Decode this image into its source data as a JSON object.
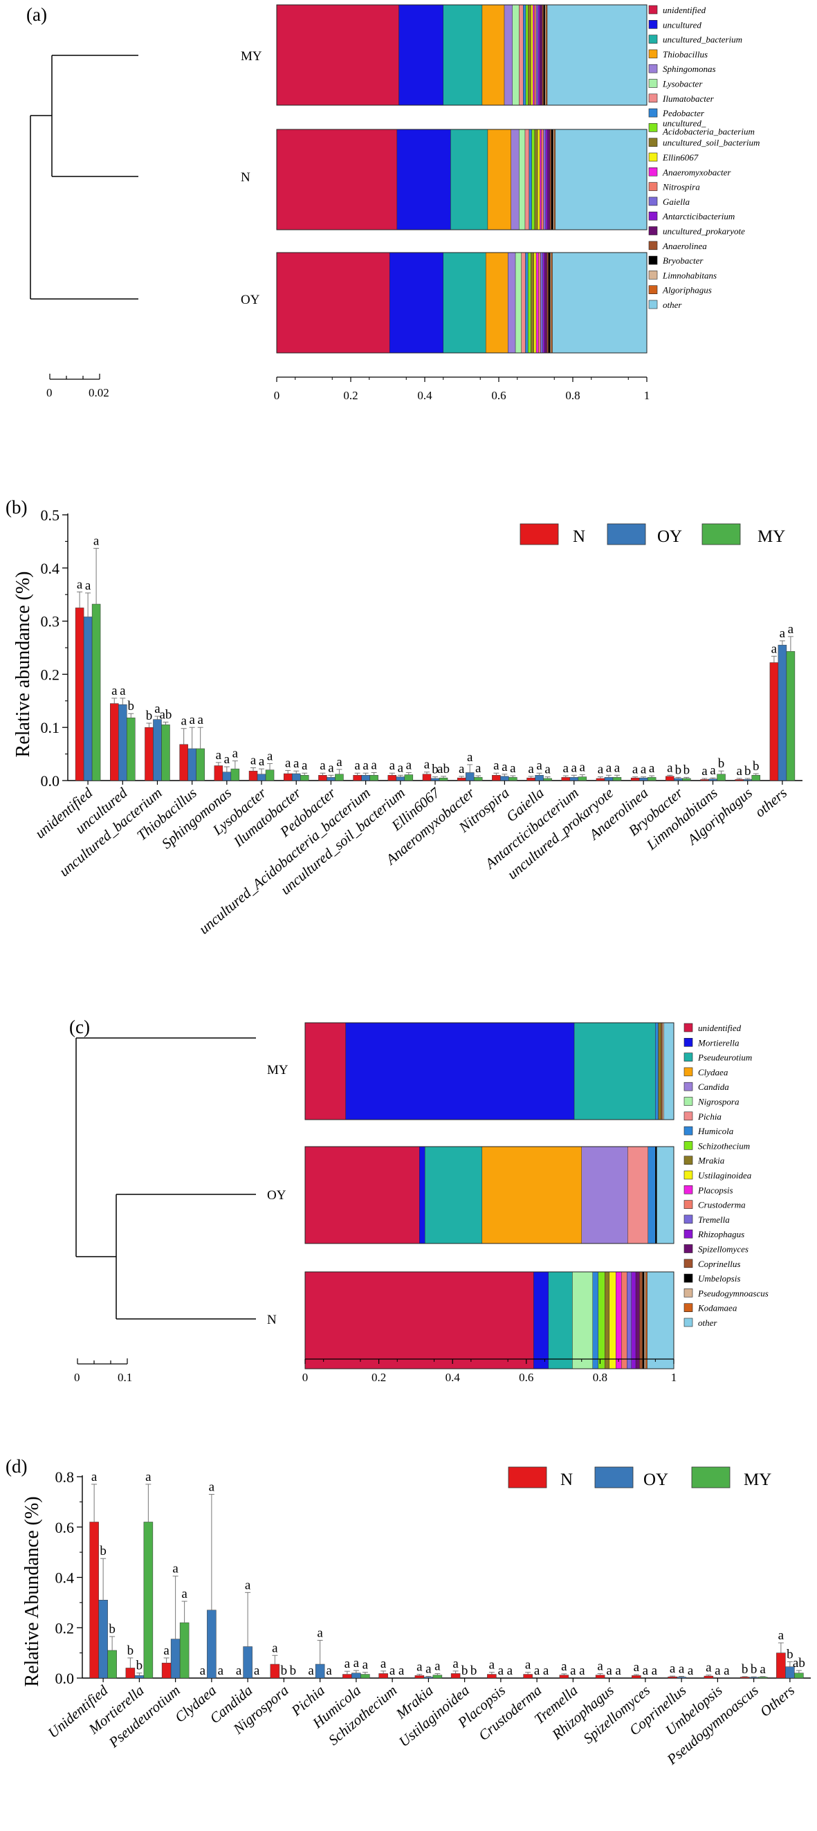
{
  "panels": {
    "a": "(a)",
    "b": "(b)",
    "c": "(c)",
    "d": "(d)"
  },
  "colors": {
    "N": "#e31a1c",
    "OY": "#3a78b8",
    "MY": "#4daf4a"
  },
  "chart_data": [
    {
      "type": "stacked-bar",
      "panel": "(a)",
      "samples": [
        "MY",
        "N",
        "OY"
      ],
      "scale_label": [
        "0",
        "0.02"
      ],
      "xticks": [
        "0",
        "0.2",
        "0.4",
        "0.6",
        "0.8",
        "1"
      ],
      "xlim": [
        0,
        1
      ],
      "legend": [
        {
          "label": "unidentified",
          "color": "#d31a47"
        },
        {
          "label": "uncultured",
          "color": "#1414e6"
        },
        {
          "label": "uncultured_bacterium",
          "color": "#20b0a6"
        },
        {
          "label": "Thiobacillus",
          "color": "#f9a30b"
        },
        {
          "label": "Sphingomonas",
          "color": "#9b7fd8"
        },
        {
          "label": "Lysobacter",
          "color": "#a8f0a8"
        },
        {
          "label": "Ilumatobacter",
          "color": "#f08c8c"
        },
        {
          "label": "Pedobacter",
          "color": "#2f86d8"
        },
        {
          "label": "uncultured_ Acidobacteria_bacterium",
          "color": "#7fe61a"
        },
        {
          "label": "uncultured_soil_bacterium",
          "color": "#8a7a25"
        },
        {
          "label": "Ellin6067",
          "color": "#f5f20f"
        },
        {
          "label": "Anaeromyxobacter",
          "color": "#f020e0"
        },
        {
          "label": "Nitrospira",
          "color": "#f07a6a"
        },
        {
          "label": "Gaiella",
          "color": "#7a6ad8"
        },
        {
          "label": "Antarcticibacterium",
          "color": "#8a16d0"
        },
        {
          "label": "uncultured_prokaryote",
          "color": "#6a1070"
        },
        {
          "label": "Anaerolinea",
          "color": "#a0522d"
        },
        {
          "label": "Bryobacter",
          "color": "#000000"
        },
        {
          "label": "Limnohabitans",
          "color": "#d8b494"
        },
        {
          "label": "Algoriphagus",
          "color": "#d0601a"
        },
        {
          "label": "other",
          "color": "#87cde6"
        }
      ],
      "composition": {
        "MY": [
          0.33,
          0.12,
          0.105,
          0.06,
          0.022,
          0.018,
          0.011,
          0.007,
          0.006,
          0.008,
          0.005,
          0.004,
          0.005,
          0.005,
          0.005,
          0.006,
          0.004,
          0.004,
          0.003,
          0.003
        ],
        "N": [
          0.325,
          0.145,
          0.1,
          0.063,
          0.022,
          0.016,
          0.011,
          0.007,
          0.008,
          0.008,
          0.006,
          0.004,
          0.006,
          0.006,
          0.005,
          0.006,
          0.004,
          0.005,
          0.003,
          0.003
        ],
        "OY": [
          0.305,
          0.145,
          0.115,
          0.06,
          0.02,
          0.016,
          0.011,
          0.007,
          0.008,
          0.008,
          0.006,
          0.006,
          0.006,
          0.006,
          0.005,
          0.006,
          0.004,
          0.005,
          0.003,
          0.003
        ]
      }
    },
    {
      "type": "bar",
      "panel": "(b)",
      "ylabel": "Relative abundance (%)",
      "ylim": [
        0,
        0.5
      ],
      "yticks": [
        "0.0",
        "0.1",
        "0.2",
        "0.3",
        "0.4",
        "0.5"
      ],
      "categories": [
        "unidentified",
        "uncultured",
        "uncultured_bacterium",
        "Thiobacillus",
        "Sphingomonas",
        "Lysobacter",
        "Ilumatobacter",
        "Pedobacter",
        "uncultured_Acidobacteria_bacterium",
        "uncultured_soil_bacterium",
        "Ellin6067",
        "Anaeromyxobacter",
        "Nitrospira",
        "Gaiella",
        "Antarcticibacterium",
        "uncultured_prokaryote",
        "Anaerolinea",
        "Bryobacter",
        "Limnohabitans",
        "Algoriphagus",
        "others"
      ],
      "series": [
        {
          "name": "N",
          "values": [
            0.325,
            0.145,
            0.1,
            0.068,
            0.028,
            0.018,
            0.013,
            0.01,
            0.01,
            0.01,
            0.012,
            0.005,
            0.01,
            0.005,
            0.006,
            0.004,
            0.005,
            0.008,
            0.002,
            0.002,
            0.222
          ],
          "errors": [
            0.03,
            0.01,
            0.008,
            0.03,
            0.006,
            0.006,
            0.006,
            0.004,
            0.004,
            0.004,
            0.004,
            0.003,
            0.004,
            0.003,
            0.003,
            0.003,
            0.002,
            0.002,
            0.002,
            0.002,
            0.012
          ]
        },
        {
          "name": "OY",
          "values": [
            0.308,
            0.143,
            0.115,
            0.06,
            0.016,
            0.012,
            0.013,
            0.006,
            0.01,
            0.007,
            0.004,
            0.015,
            0.008,
            0.01,
            0.006,
            0.006,
            0.005,
            0.004,
            0.003,
            0.002,
            0.255
          ],
          "errors": [
            0.045,
            0.012,
            0.006,
            0.04,
            0.01,
            0.01,
            0.005,
            0.004,
            0.004,
            0.003,
            0.003,
            0.015,
            0.004,
            0.004,
            0.004,
            0.004,
            0.002,
            0.002,
            0.002,
            0.002,
            0.008
          ]
        },
        {
          "name": "MY",
          "values": [
            0.332,
            0.118,
            0.105,
            0.06,
            0.022,
            0.02,
            0.01,
            0.012,
            0.01,
            0.011,
            0.005,
            0.006,
            0.006,
            0.004,
            0.007,
            0.006,
            0.006,
            0.004,
            0.012,
            0.01,
            0.243
          ],
          "errors": [
            0.105,
            0.008,
            0.005,
            0.04,
            0.015,
            0.012,
            0.004,
            0.009,
            0.005,
            0.004,
            0.003,
            0.003,
            0.003,
            0.003,
            0.004,
            0.004,
            0.003,
            0.002,
            0.006,
            0.003,
            0.028
          ]
        }
      ],
      "letters": [
        [
          "a",
          "a",
          "a"
        ],
        [
          "a",
          "a",
          "b"
        ],
        [
          "b",
          "a",
          "ab"
        ],
        [
          "a",
          "a",
          "a"
        ],
        [
          "a",
          "a",
          "a"
        ],
        [
          "a",
          "a",
          "a"
        ],
        [
          "a",
          "a",
          "a"
        ],
        [
          "a",
          "a",
          "a"
        ],
        [
          "a",
          "a",
          "a"
        ],
        [
          "a",
          "a",
          "a"
        ],
        [
          "a",
          "b",
          "ab"
        ],
        [
          "a",
          "a",
          "a"
        ],
        [
          "a",
          "a",
          "a"
        ],
        [
          "a",
          "a",
          "a"
        ],
        [
          "a",
          "a",
          "a"
        ],
        [
          "a",
          "a",
          "a"
        ],
        [
          "a",
          "a",
          "a"
        ],
        [
          "a",
          "b",
          "b"
        ],
        [
          "a",
          "a",
          "b"
        ],
        [
          "a",
          "b",
          "b"
        ],
        [
          "a",
          "a",
          "a"
        ]
      ],
      "legend": [
        "N",
        "OY",
        "MY"
      ]
    },
    {
      "type": "stacked-bar",
      "panel": "(c)",
      "samples": [
        "MY",
        "OY",
        "N"
      ],
      "scale_label": [
        "0",
        "0.1"
      ],
      "xticks": [
        "0",
        "0.2",
        "0.4",
        "0.6",
        "0.8",
        "1"
      ],
      "xlim": [
        0,
        1
      ],
      "legend": [
        {
          "label": "unidentified",
          "color": "#d31a47"
        },
        {
          "label": "Mortierella",
          "color": "#1414e6"
        },
        {
          "label": "Pseudeurotium",
          "color": "#20b0a6"
        },
        {
          "label": "Clydaea",
          "color": "#f9a30b"
        },
        {
          "label": "Candida",
          "color": "#9b7fd8"
        },
        {
          "label": "Nigrospora",
          "color": "#a8f0a8"
        },
        {
          "label": "Pichia",
          "color": "#f08c8c"
        },
        {
          "label": "Humicola",
          "color": "#2f86d8"
        },
        {
          "label": "Schizothecium",
          "color": "#7fe61a"
        },
        {
          "label": "Mrakia",
          "color": "#8a7a25"
        },
        {
          "label": "Ustilaginoidea",
          "color": "#f5f20f"
        },
        {
          "label": "Placopsis",
          "color": "#f020e0"
        },
        {
          "label": "Crustoderma",
          "color": "#f07a6a"
        },
        {
          "label": "Tremella",
          "color": "#7a6ad8"
        },
        {
          "label": "Rhizophagus",
          "color": "#8a16d0"
        },
        {
          "label": "Spizellomyces",
          "color": "#6a1070"
        },
        {
          "label": "Coprinellus",
          "color": "#a0522d"
        },
        {
          "label": "Umbelopsis",
          "color": "#000000"
        },
        {
          "label": "Pseudogymnoascus",
          "color": "#d8b494"
        },
        {
          "label": "Kodamaea",
          "color": "#d0601a"
        },
        {
          "label": "other",
          "color": "#87cde6"
        }
      ],
      "composition": {
        "MY": [
          0.11,
          0.62,
          0.22,
          0.0,
          0.0,
          0.0,
          0.0,
          0.008,
          0.0,
          0.008,
          0.0,
          0.0,
          0.0,
          0.0,
          0.0,
          0.0,
          0.003,
          0.0,
          0.004,
          0.0
        ],
        "OY": [
          0.31,
          0.015,
          0.155,
          0.27,
          0.125,
          0.0,
          0.055,
          0.02,
          0.0,
          0.0,
          0.0,
          0.0,
          0.0,
          0.0,
          0.0,
          0.0,
          0.0,
          0.004,
          0.0,
          0.0
        ],
        "N": [
          0.62,
          0.04,
          0.065,
          0.0,
          0.0,
          0.055,
          0.0,
          0.015,
          0.018,
          0.012,
          0.018,
          0.015,
          0.015,
          0.012,
          0.012,
          0.01,
          0.008,
          0.005,
          0.004,
          0.004
        ]
      }
    },
    {
      "type": "bar",
      "panel": "(d)",
      "ylabel": "Relative Abundance (%)",
      "ylim": [
        0,
        0.8
      ],
      "yticks": [
        "0.0",
        "0.2",
        "0.4",
        "0.6",
        "0.8"
      ],
      "categories": [
        "Unidentified",
        "Mortierella",
        "Pseudeurotium",
        "Clydaea",
        "Candida",
        "Nigrospora",
        "Pichia",
        "Humicola",
        "Schizothecium",
        "Mrakia",
        "Ustilaginoidea",
        "Placopsis",
        "Crustoderma",
        "Tremella",
        "Rhizophagus",
        "Spizellomyces",
        "Coprinellus",
        "Umbelopsis",
        "Pseudogymnoascus",
        "Others"
      ],
      "series": [
        {
          "name": "N",
          "values": [
            0.62,
            0.04,
            0.06,
            0.0,
            0.0,
            0.055,
            0.0,
            0.015,
            0.018,
            0.01,
            0.018,
            0.015,
            0.015,
            0.012,
            0.012,
            0.01,
            0.005,
            0.008,
            0.004,
            0.1
          ],
          "errors": [
            0.15,
            0.04,
            0.02,
            0.0,
            0.0,
            0.035,
            0.0,
            0.012,
            0.01,
            0.005,
            0.01,
            0.008,
            0.008,
            0.005,
            0.006,
            0.004,
            0.003,
            0.004,
            0.002,
            0.04
          ]
        },
        {
          "name": "OY",
          "values": [
            0.31,
            0.01,
            0.155,
            0.27,
            0.125,
            0.0,
            0.055,
            0.02,
            0.0,
            0.004,
            0.0,
            0.0,
            0.0,
            0.0,
            0.0,
            0.0,
            0.004,
            0.0,
            0.003,
            0.045
          ],
          "errors": [
            0.165,
            0.01,
            0.25,
            0.46,
            0.215,
            0.0,
            0.095,
            0.01,
            0.0,
            0.003,
            0.0,
            0.0,
            0.0,
            0.0,
            0.0,
            0.0,
            0.003,
            0.0,
            0.002,
            0.02
          ]
        },
        {
          "name": "MY",
          "values": [
            0.11,
            0.62,
            0.22,
            0.0,
            0.0,
            0.0,
            0.0,
            0.015,
            0.0,
            0.012,
            0.0,
            0.0,
            0.0,
            0.0,
            0.0,
            0.0,
            0.0,
            0.0,
            0.004,
            0.02
          ],
          "errors": [
            0.055,
            0.15,
            0.085,
            0.0,
            0.0,
            0.0,
            0.0,
            0.008,
            0.0,
            0.006,
            0.0,
            0.0,
            0.0,
            0.0,
            0.0,
            0.0,
            0.0,
            0.0,
            0.002,
            0.01
          ]
        }
      ],
      "letters": [
        [
          "a",
          "b",
          "b"
        ],
        [
          "b",
          "b",
          "a"
        ],
        [
          "a",
          "a",
          "a"
        ],
        [
          "a",
          "a",
          "a"
        ],
        [
          "a",
          "a",
          "a"
        ],
        [
          "a",
          "b",
          "b"
        ],
        [
          "a",
          "a",
          "a"
        ],
        [
          "a",
          "a",
          "a"
        ],
        [
          "a",
          "a",
          "a"
        ],
        [
          "a",
          "a",
          "a"
        ],
        [
          "a",
          "b",
          "b"
        ],
        [
          "a",
          "a",
          "a"
        ],
        [
          "a",
          "a",
          "a"
        ],
        [
          "a",
          "a",
          "a"
        ],
        [
          "a",
          "a",
          "a"
        ],
        [
          "a",
          "a",
          "a"
        ],
        [
          "a",
          "a",
          "a"
        ],
        [
          "a",
          "a",
          "a"
        ],
        [
          "b",
          "b",
          "a"
        ],
        [
          "a",
          "b",
          "ab"
        ]
      ],
      "legend": [
        "N",
        "OY",
        "MY"
      ]
    }
  ]
}
